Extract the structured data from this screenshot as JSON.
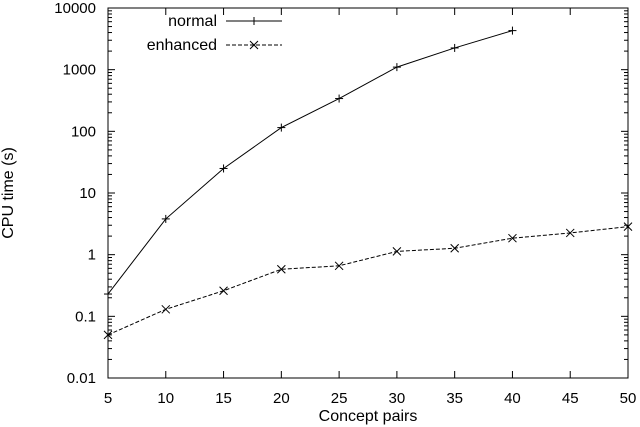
{
  "chart_data": {
    "type": "line",
    "title": "",
    "xlabel": "Concept pairs",
    "ylabel": "CPU time (s)",
    "xlim": [
      5,
      50
    ],
    "ylim": [
      0.01,
      10000
    ],
    "yscale": "log",
    "x_ticks": [
      5,
      10,
      15,
      20,
      25,
      30,
      35,
      40,
      45,
      50
    ],
    "y_ticks": [
      {
        "value": 0.01,
        "label": "0.01"
      },
      {
        "value": 0.1,
        "label": "0.1"
      },
      {
        "value": 1,
        "label": "1"
      },
      {
        "value": 10,
        "label": "10"
      },
      {
        "value": 100,
        "label": "100"
      },
      {
        "value": 1000,
        "label": "1000"
      },
      {
        "value": 10000,
        "label": "10000"
      }
    ],
    "grid": false,
    "legend_position": "top-left",
    "series": [
      {
        "name": "normal",
        "marker": "plus",
        "dashed": false,
        "color": "#000000",
        "x": [
          5,
          10,
          15,
          20,
          25,
          30,
          35,
          40
        ],
        "y": [
          0.23,
          3.8,
          25,
          115,
          340,
          1100,
          2250,
          4300
        ]
      },
      {
        "name": "enhanced",
        "marker": "cross",
        "dashed": true,
        "color": "#000000",
        "x": [
          5,
          10,
          15,
          20,
          25,
          30,
          35,
          40,
          45,
          50
        ],
        "y": [
          0.05,
          0.13,
          0.26,
          0.58,
          0.66,
          1.13,
          1.27,
          1.85,
          2.25,
          2.85
        ]
      }
    ]
  }
}
